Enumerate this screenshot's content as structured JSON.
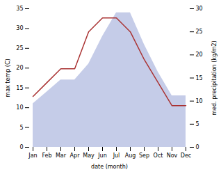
{
  "chart_data": {
    "type": "line",
    "xlabel": "date (month)",
    "ylabel": "max temp (C)",
    "y2label": "med. precipitation (kg/m2)",
    "categories": [
      "Jan",
      "Feb",
      "Mar",
      "Apr",
      "May",
      "Jun",
      "Jul",
      "Aug",
      "Sep",
      "Oct",
      "Nov",
      "Dec"
    ],
    "series": [
      {
        "type": "area",
        "color": "#c5cce8",
        "values": [
          11,
          14,
          17,
          17,
          21,
          28,
          34,
          34,
          26,
          19,
          13,
          13
        ]
      },
      {
        "type": "line",
        "color": "#aa3333",
        "axis": "y2",
        "values": [
          11,
          14,
          17,
          17,
          25,
          28,
          28,
          25,
          19,
          14,
          9,
          9
        ]
      }
    ],
    "ylim": [
      0,
      35
    ],
    "yticks": [
      0,
      5,
      10,
      15,
      20,
      25,
      30,
      35
    ],
    "y2lim": [
      0,
      30
    ],
    "y2ticks": [
      0,
      5,
      10,
      15,
      20,
      25,
      30
    ]
  }
}
